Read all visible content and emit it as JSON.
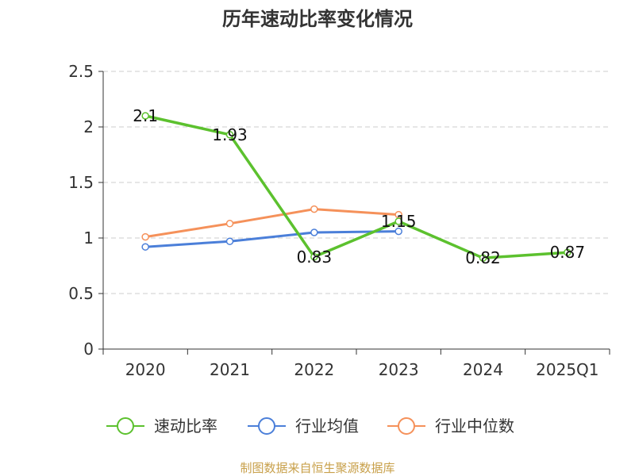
{
  "chart_data": {
    "type": "line",
    "title": "历年速动比率变化情况",
    "categories": [
      "2020",
      "2021",
      "2022",
      "2023",
      "2024",
      "2025Q1"
    ],
    "ylim": [
      0,
      2.5
    ],
    "yticks": [
      "0",
      "0.5",
      "1",
      "1.5",
      "2",
      "2.5"
    ],
    "ytick_values": [
      0,
      0.5,
      1,
      1.5,
      2,
      2.5
    ],
    "grid": true,
    "legend_position": "bottom",
    "series": [
      {
        "name": "速动比率",
        "color": "#5cc12e",
        "values": [
          2.1,
          1.93,
          0.83,
          1.15,
          0.82,
          0.87
        ],
        "labels": [
          "2.1",
          "1.93",
          "0.83",
          "1.15",
          "0.82",
          "0.87"
        ]
      },
      {
        "name": "行业均值",
        "color": "#4b7fd9",
        "values": [
          0.92,
          0.97,
          1.05,
          1.06,
          null,
          null
        ]
      },
      {
        "name": "行业中位数",
        "color": "#f5915a",
        "values": [
          1.01,
          1.13,
          1.26,
          1.21,
          null,
          null
        ]
      }
    ]
  },
  "source": "制图数据来自恒生聚源数据库"
}
